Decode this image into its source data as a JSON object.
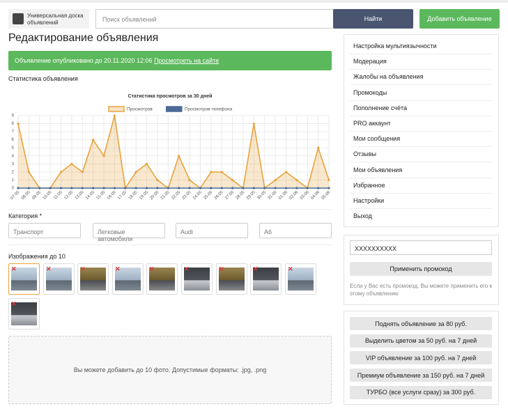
{
  "header": {
    "logo": "Универсальная доска объявлений",
    "search_placeholder": "Поиск объявлений",
    "search_button": "Найти",
    "add_button": "Добавить объявление"
  },
  "page_title": "Редактирование объявления",
  "alert": {
    "text": "Объявление опубликовано до 20.11.2020 12:06",
    "link": "Просмотреть на сайте"
  },
  "stats_label": "Статистика объявления",
  "chart_data": {
    "type": "line",
    "title": "Статистика просмотров за 30 дней",
    "categories": [
      "07.05",
      "08.05",
      "09.05",
      "10.05",
      "11.05",
      "12.05",
      "13.05",
      "14.05",
      "15.05",
      "16.05",
      "17.05",
      "18.05",
      "19.05",
      "20.05",
      "21.05",
      "22.05",
      "23.05",
      "24.05",
      "25.05",
      "26.05",
      "27.05",
      "28.05",
      "29.05",
      "30.05",
      "31.05",
      "01.06",
      "02.06",
      "03.06",
      "04.06",
      "05.06"
    ],
    "series": [
      {
        "name": "Просмотров",
        "color": "#e8a33d",
        "values": [
          8,
          2,
          0,
          0,
          2,
          3,
          2,
          6,
          4,
          9,
          0,
          2,
          3,
          1,
          0,
          4,
          1,
          0,
          2,
          2,
          1,
          0,
          8,
          0,
          1,
          2,
          1,
          0,
          5,
          1
        ]
      },
      {
        "name": "Просмотров телефона",
        "color": "#4a6a96",
        "values": [
          0,
          0,
          0,
          0,
          0,
          0,
          0,
          0,
          0,
          0,
          0,
          0,
          0,
          0,
          0,
          0,
          0,
          0,
          0,
          0,
          0,
          0,
          0,
          0,
          0,
          0,
          0,
          0,
          0,
          0
        ]
      }
    ],
    "ylim": [
      0,
      9
    ],
    "yticks": [
      0,
      1,
      2,
      3,
      4,
      5,
      6,
      7,
      8,
      9
    ],
    "grid": true,
    "legend": "top"
  },
  "category": {
    "label": "Категория *",
    "fields": [
      "Транспорт",
      "Легковые автомобили",
      "Audi",
      "A6"
    ]
  },
  "images": {
    "label": "Изображения до 10"
  },
  "dropzone": "Вы можете добавить до 10 фото. Допустимые форматы: .jpg, .png",
  "sidebar": {
    "menu": [
      "Настройка мультиязычности",
      "Модерация",
      "Жалобы на объявления",
      "Промокоды",
      "Пополнение счёта",
      "PRO аккаунт",
      "Мои сообщения",
      "Отзывы",
      "Мои объявления",
      "Избранное",
      "Настройки",
      "Выход"
    ],
    "promo": {
      "value": "XXXXXXXXXX",
      "button": "Применить промокод",
      "hint": "Если у Вас есть промокод, Вы можете применить его к этому объявлению"
    },
    "services": [
      "Поднять объявление за 80 руб.",
      "Выделить цветом за 50 руб. на 7 дней",
      "VIP объявление за 100 руб. на 7 дней",
      "Премиум объявление за 150 руб. на 7 дней",
      "ТУРБО (все услуги сразу) за 300 руб."
    ]
  }
}
